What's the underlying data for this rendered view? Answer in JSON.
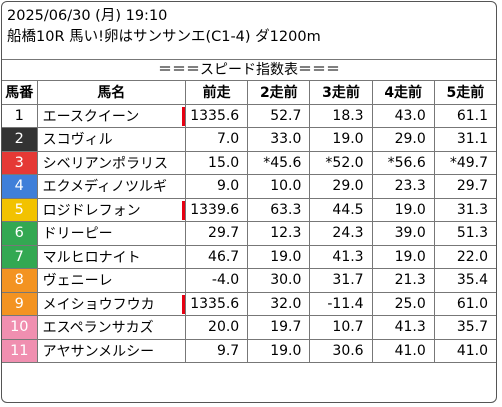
{
  "header": {
    "date": "2025/06/30 (月) 19:10",
    "race": "船橋10R 馬い!卵はサンサンエ(C1-4) ダ1200m"
  },
  "banner": "＝＝＝スピード指数表＝＝＝",
  "columns": [
    "馬番",
    "馬名",
    "前走",
    "2走前",
    "3走前",
    "4走前",
    "5走前"
  ],
  "colors": {
    "frame1": "#ffffff",
    "frame2": "#333333",
    "frame3": "#e53935",
    "frame4": "#3f7fd9",
    "frame5": "#f2c200",
    "frame6": "#33a852",
    "frame7": "#f39321",
    "frame8": "#f08fb0",
    "marker": "#e60012"
  },
  "rows": [
    {
      "num": "1",
      "name": "エースクイーン",
      "v1": "1335.6",
      "v2": "52.7",
      "v3": "18.3",
      "v4": "43.0",
      "v5": "61.1",
      "frame": 1,
      "marker": true
    },
    {
      "num": "2",
      "name": "スコヴィル",
      "v1": "7.0",
      "v2": "33.0",
      "v3": "19.0",
      "v4": "29.0",
      "v5": "31.1",
      "frame": 2,
      "marker": false
    },
    {
      "num": "3",
      "name": "シベリアンポラリス",
      "v1": "15.0",
      "v2": "*45.6",
      "v3": "*52.0",
      "v4": "*56.6",
      "v5": "*49.7",
      "frame": 3,
      "marker": false
    },
    {
      "num": "4",
      "name": "エクメディノツルギ",
      "v1": "9.0",
      "v2": "10.0",
      "v3": "29.0",
      "v4": "23.3",
      "v5": "29.7",
      "frame": 4,
      "marker": false
    },
    {
      "num": "5",
      "name": "ロジドレフォン",
      "v1": "1339.6",
      "v2": "63.3",
      "v3": "44.5",
      "v4": "19.0",
      "v5": "31.3",
      "frame": 5,
      "marker": true
    },
    {
      "num": "6",
      "name": "ドリーピー",
      "v1": "29.7",
      "v2": "12.3",
      "v3": "24.3",
      "v4": "39.0",
      "v5": "51.3",
      "frame": 6,
      "marker": false
    },
    {
      "num": "7",
      "name": "マルヒロナイト",
      "v1": "46.7",
      "v2": "19.0",
      "v3": "41.3",
      "v4": "19.0",
      "v5": "22.0",
      "frame": 6,
      "marker": false
    },
    {
      "num": "8",
      "name": "ヴェニーレ",
      "v1": "-4.0",
      "v2": "30.0",
      "v3": "31.7",
      "v4": "21.3",
      "v5": "35.4",
      "frame": 7,
      "marker": false
    },
    {
      "num": "9",
      "name": "メイショウフウカ",
      "v1": "1335.6",
      "v2": "32.0",
      "v3": "-11.4",
      "v4": "25.0",
      "v5": "61.0",
      "frame": 7,
      "marker": true
    },
    {
      "num": "10",
      "name": "エスペランサカズ",
      "v1": "20.0",
      "v2": "19.7",
      "v3": "10.7",
      "v4": "41.3",
      "v5": "35.7",
      "frame": 8,
      "marker": false
    },
    {
      "num": "11",
      "name": "アヤサンメルシー",
      "v1": "9.7",
      "v2": "19.0",
      "v3": "30.6",
      "v4": "41.0",
      "v5": "41.0",
      "frame": 8,
      "marker": false
    }
  ]
}
